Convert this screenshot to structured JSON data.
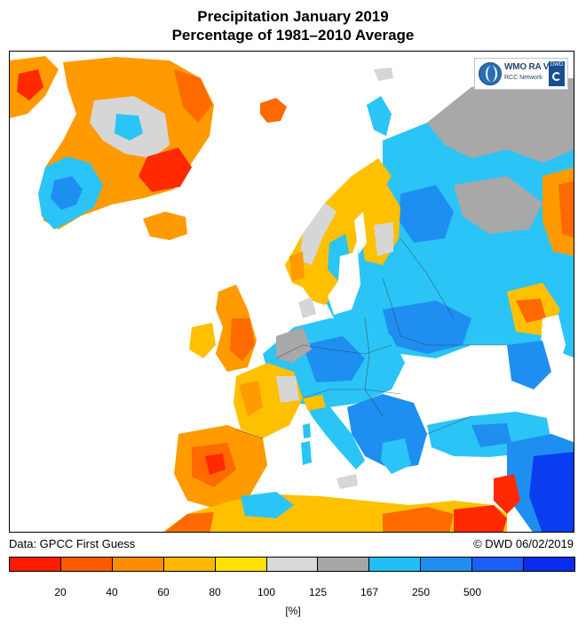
{
  "header": {
    "title_line1": "Precipitation January 2019",
    "title_line2": "Percentage of 1981–2010 Average"
  },
  "logo": {
    "org_text": "WMO RA VI",
    "network_text": "RCC Network",
    "mark_text": "DWD",
    "icon": "wmo-globe-icon"
  },
  "footer": {
    "data_source": "Data: GPCC First Guess",
    "copyright": "© DWD 06/02/2019"
  },
  "legend": {
    "unit_label": "[%]",
    "tick_labels": [
      "20",
      "40",
      "60",
      "80",
      "100",
      "125",
      "167",
      "250",
      "500"
    ],
    "colors": [
      "#ff1a00",
      "#ff5a00",
      "#ff8c00",
      "#ffb700",
      "#ffe100",
      "#d9d9d9",
      "#a6a6a6",
      "#1fbff5",
      "#1e8ff0",
      "#1b5ef5",
      "#0a2bf0"
    ]
  },
  "map_colors": {
    "ocean": "#ffffff",
    "very_dry": "#ff2a00",
    "dry": "#ff6a00",
    "moderately_dry": "#ff9a00",
    "slightly_dry": "#ffc000",
    "near_normal": "#d6d6d6",
    "slightly_wet": "#a8a8a8",
    "wet": "#2bc4f6",
    "very_wet": "#1e8ff0",
    "extreme_wet": "#0a3cf0"
  }
}
